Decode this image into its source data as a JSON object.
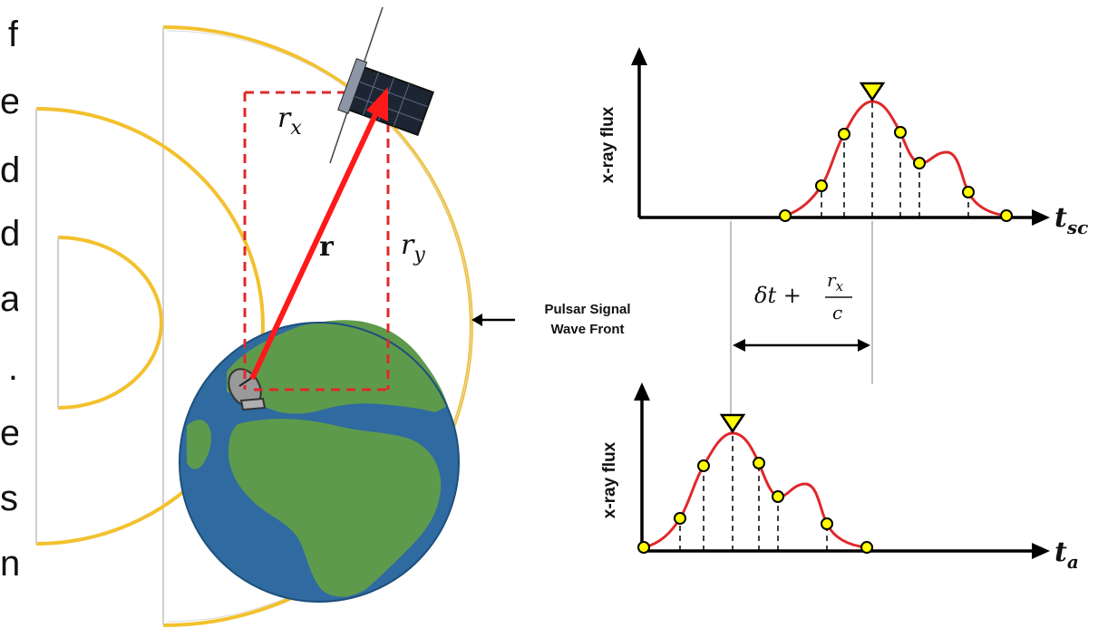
{
  "left_edge_text": [
    "f",
    "e",
    "d",
    "d",
    "a",
    ".",
    "e",
    "s",
    "n"
  ],
  "orbit_labels": {
    "rx": "r",
    "rx_sub": "x",
    "r": "r",
    "ry": "r",
    "ry_sub": "y"
  },
  "wave_label": {
    "line1": "Pulsar Signal",
    "line2": "Wave Front"
  },
  "top_plot": {
    "ylabel": "x-ray flux",
    "xlabel": "t",
    "xlabel_sub": "sc"
  },
  "bottom_plot": {
    "ylabel": "x-ray flux",
    "xlabel": "t",
    "xlabel_sub": "a"
  },
  "delay": {
    "lhs": "δt + ",
    "num": "r",
    "num_sub": "x",
    "den": "c"
  },
  "colors": {
    "orbit": "#f2c12e",
    "vector": "#ff1a1a",
    "box": "#e0282a",
    "curve": "#e0282a",
    "marker": "#ffff00",
    "ocean": "#2f6aa1",
    "land": "#5e9a4c"
  }
}
